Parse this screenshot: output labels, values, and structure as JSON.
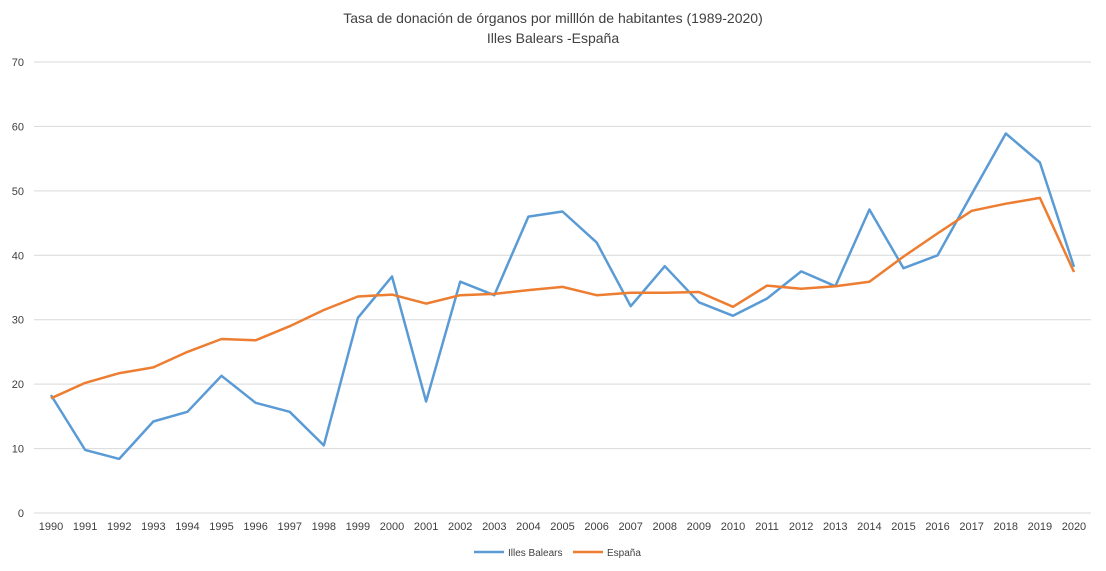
{
  "chart_data": {
    "type": "line",
    "title": "Tasa de donación de órganos  por milllón de habitantes (1989-2020)",
    "subtitle": "Illes Balears -España",
    "xlabel": "",
    "ylabel": "",
    "ylim": [
      0,
      70
    ],
    "yticks": [
      0,
      10,
      20,
      30,
      40,
      50,
      60,
      70
    ],
    "grid": true,
    "legend_position": "bottom",
    "categories": [
      "1990",
      "1991",
      "1992",
      "1993",
      "1994",
      "1995",
      "1996",
      "1997",
      "1998",
      "1999",
      "2000",
      "2001",
      "2002",
      "2003",
      "2004",
      "2005",
      "2006",
      "2007",
      "2008",
      "2009",
      "2010",
      "2011",
      "2012",
      "2013",
      "2014",
      "2015",
      "2016",
      "2017",
      "2018",
      "2019",
      "2020"
    ],
    "series": [
      {
        "name": "Illes Balears",
        "color": "#5b9bd5",
        "values": [
          18.3,
          9.8,
          8.4,
          14.2,
          15.7,
          21.3,
          17.1,
          15.7,
          10.5,
          30.3,
          36.7,
          17.3,
          35.9,
          33.8,
          46.0,
          46.8,
          42.0,
          32.1,
          38.3,
          32.7,
          30.6,
          33.3,
          37.5,
          35.2,
          47.1,
          38.0,
          40.0,
          49.5,
          58.9,
          54.4,
          38.2
        ]
      },
      {
        "name": "España",
        "color": "#ed7d31",
        "values": [
          17.8,
          20.2,
          21.7,
          22.6,
          25.0,
          27.0,
          26.8,
          29.0,
          31.5,
          33.6,
          33.9,
          32.5,
          33.8,
          34.0,
          34.6,
          35.1,
          33.8,
          34.2,
          34.2,
          34.3,
          32.0,
          35.3,
          34.8,
          35.2,
          35.9,
          39.8,
          43.4,
          46.9,
          48.0,
          48.9,
          37.4
        ]
      }
    ]
  }
}
